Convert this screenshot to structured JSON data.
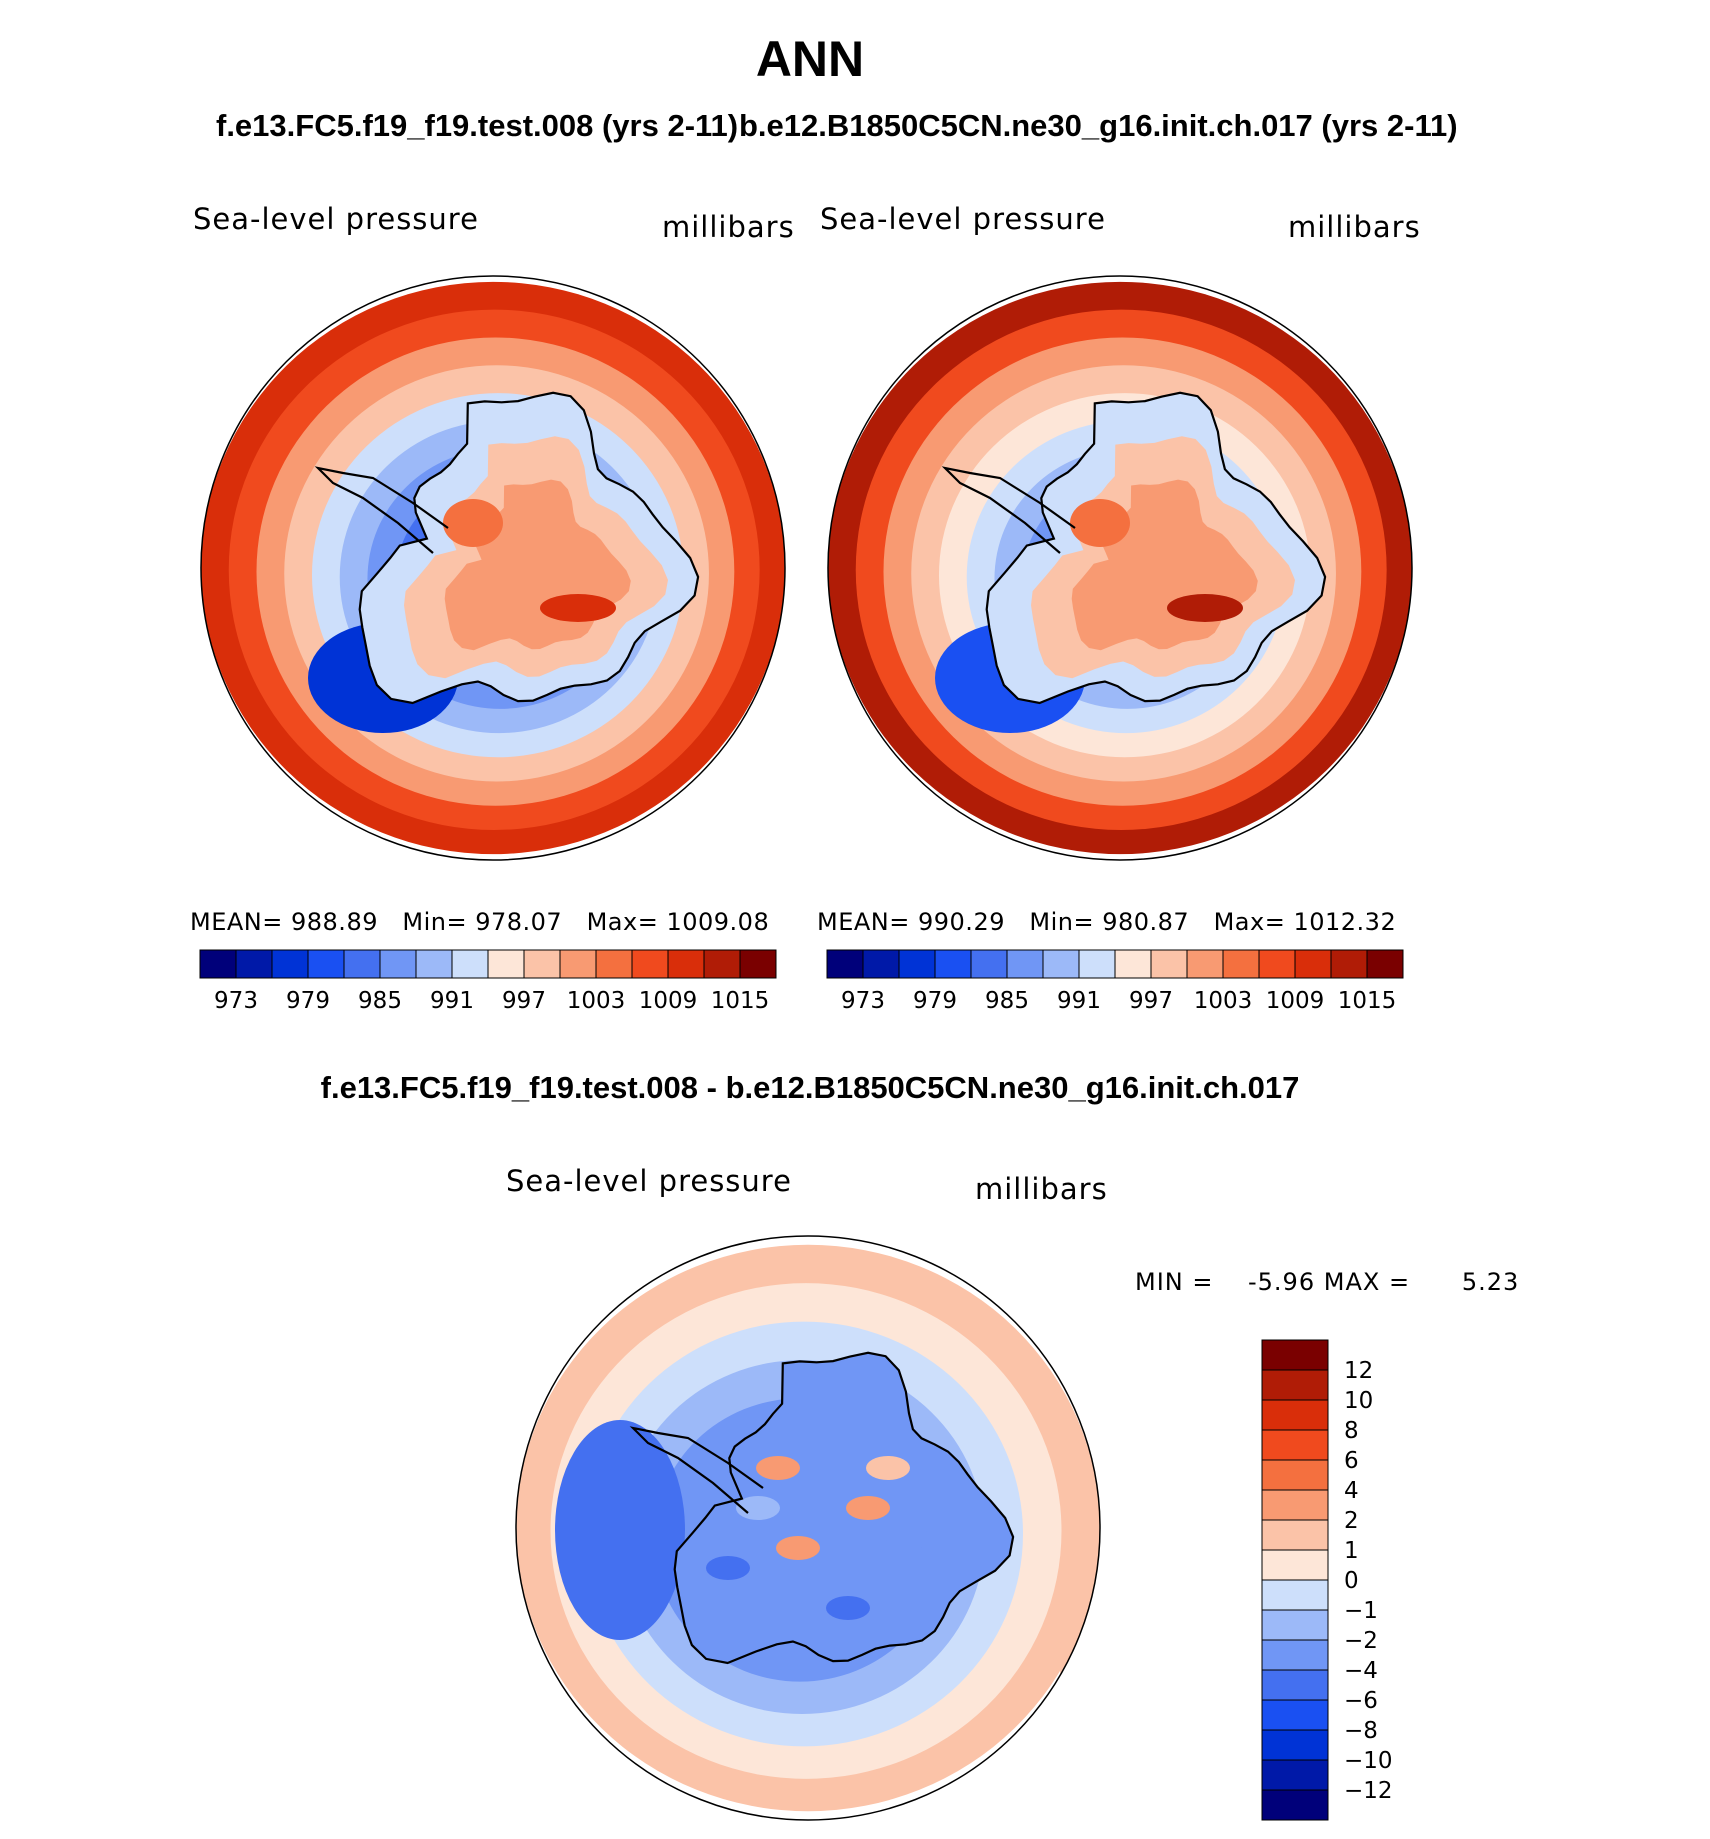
{
  "page": {
    "title": "ANN",
    "subtitle_left": "f.e13.FC5.f19_f19.test.008 (yrs 2-11)",
    "subtitle_right": "b.e12.B1850C5CN.ne30_g16.init.ch.017 (yrs 2-11)",
    "diff_title": "f.e13.FC5.f19_f19.test.008 - b.e12.B1850C5CN.ne30_g16.init.ch.017"
  },
  "colors": {
    "abs_scale": [
      "#00007a",
      "#0019a8",
      "#0033d6",
      "#1a50f2",
      "#4470f0",
      "#7096f5",
      "#9cb9f8",
      "#cddffb",
      "#fde6d8",
      "#fbc3a8",
      "#f89a72",
      "#f4703f",
      "#f04a1e",
      "#d92e0a",
      "#b01c06",
      "#7a0000"
    ],
    "diff_scale": [
      "#00007a",
      "#0019a8",
      "#0033d6",
      "#1a50f2",
      "#4470f0",
      "#7096f5",
      "#9cb9f8",
      "#cddffb",
      "#fde6d8",
      "#fbc3a8",
      "#f89a72",
      "#f4703f",
      "#f04a1e",
      "#d92e0a",
      "#b01c06",
      "#7a0000"
    ]
  },
  "chart_data": [
    {
      "type": "heatmap",
      "panel": "left",
      "title": "Sea-level pressure",
      "units": "millibars",
      "stats": {
        "mean_label": "MEAN=",
        "mean": "988.89",
        "min_label": "Min=",
        "min": "978.07",
        "max_label": "Max=",
        "max": "1009.08"
      },
      "colorbar_labels": [
        "973",
        "979",
        "985",
        "991",
        "997",
        "1003",
        "1009",
        "1015"
      ],
      "field": {
        "rings": [
          1011,
          1006,
          1001,
          997,
          993,
          989,
          986,
          983,
          981,
          980,
          983
        ],
        "antarctica_max": 1009
      }
    },
    {
      "type": "heatmap",
      "panel": "right",
      "title": "Sea-level pressure",
      "units": "millibars",
      "stats": {
        "mean_label": "MEAN=",
        "mean": "990.29",
        "min_label": "Min=",
        "min": "980.87",
        "max_label": "Max=",
        "max": "1012.32"
      },
      "colorbar_labels": [
        "973",
        "979",
        "985",
        "991",
        "997",
        "1003",
        "1009",
        "1015"
      ],
      "field": {
        "rings": [
          1012,
          1007,
          1002,
          998,
          994,
          991,
          988,
          985,
          984,
          983,
          985
        ],
        "antarctica_max": 1012
      }
    },
    {
      "type": "heatmap",
      "panel": "difference",
      "title": "Sea-level pressure",
      "units": "millibars",
      "range_text": {
        "min_label": "MIN =",
        "min": "-5.96",
        "max_label": "MAX =",
        "max": "5.23"
      },
      "colorbar_labels": [
        "12",
        "10",
        "8",
        "6",
        "4",
        "2",
        "1",
        "0",
        "−1",
        "−2",
        "−4",
        "−6",
        "−8",
        "−10",
        "−12"
      ],
      "field": {
        "rings": [
          1.5,
          0.5,
          -0.5,
          -1.5,
          -2.5,
          -3.5,
          -2.5,
          -3.5
        ],
        "min": -5.96,
        "max": 5.23
      }
    }
  ]
}
